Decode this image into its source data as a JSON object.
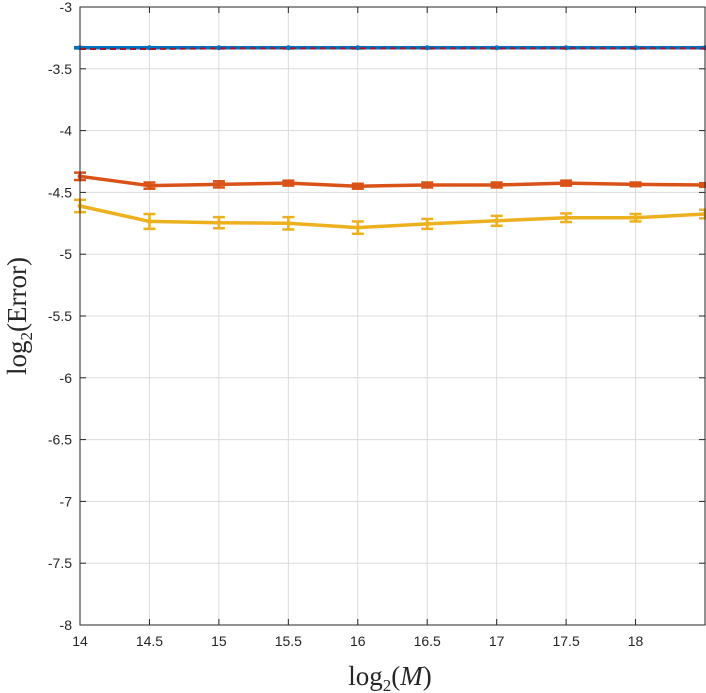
{
  "chart_data": {
    "type": "line",
    "title": "",
    "xlabel": {
      "base": "log",
      "sub": "2",
      "arg": "(",
      "var": "M",
      "close": ")"
    },
    "ylabel": {
      "base": "log",
      "sub": "2",
      "arg": "(Error)"
    },
    "xlim": [
      14,
      18.5
    ],
    "ylim": [
      -8,
      -3
    ],
    "xticks": [
      14,
      14.5,
      15,
      15.5,
      16,
      16.5,
      17,
      17.5,
      18
    ],
    "xtick_labels": [
      "14",
      "14.5",
      "15",
      "15.5",
      "16",
      "16.5",
      "17",
      "17.5",
      "18"
    ],
    "yticks": [
      -8,
      -7.5,
      -7,
      -6.5,
      -6,
      -5.5,
      -5,
      -4.5,
      -4,
      -3.5,
      -3
    ],
    "ytick_labels": [
      "-8",
      "-7.5",
      "-7",
      "-6.5",
      "-6",
      "-5.5",
      "-5",
      "-4.5",
      "-4",
      "-3.5",
      "-3"
    ],
    "grid": true,
    "x": [
      14,
      14.5,
      15,
      15.5,
      16,
      16.5,
      17,
      17.5,
      18,
      18.5
    ],
    "series": [
      {
        "name": "series-blue",
        "color": "#0072BD",
        "style": "solid",
        "values": [
          -3.33,
          -3.33,
          -3.33,
          -3.33,
          -3.33,
          -3.33,
          -3.33,
          -3.33,
          -3.33,
          -3.33
        ],
        "err": [
          0.005,
          0.005,
          0.005,
          0.005,
          0.005,
          0.005,
          0.005,
          0.005,
          0.005,
          0.005
        ]
      },
      {
        "name": "series-red-dashed",
        "color": "#A2142F",
        "style": "dashed",
        "values": [
          -3.34,
          -3.34,
          -3.335,
          -3.335,
          -3.335,
          -3.335,
          -3.335,
          -3.335,
          -3.335,
          -3.335
        ],
        "err": []
      },
      {
        "name": "series-orange",
        "color": "#D95319",
        "style": "solid",
        "values": [
          -4.37,
          -4.445,
          -4.435,
          -4.425,
          -4.45,
          -4.44,
          -4.44,
          -4.425,
          -4.435,
          -4.44
        ],
        "err": [
          0.03,
          0.025,
          0.025,
          0.02,
          0.02,
          0.02,
          0.02,
          0.02,
          0.015,
          0.015
        ]
      },
      {
        "name": "series-yellow",
        "color": "#EDB120",
        "style": "solid",
        "values": [
          -4.61,
          -4.735,
          -4.745,
          -4.75,
          -4.785,
          -4.755,
          -4.73,
          -4.705,
          -4.705,
          -4.675
        ],
        "err": [
          0.05,
          0.06,
          0.045,
          0.05,
          0.05,
          0.04,
          0.04,
          0.035,
          0.03,
          0.035
        ]
      }
    ]
  }
}
